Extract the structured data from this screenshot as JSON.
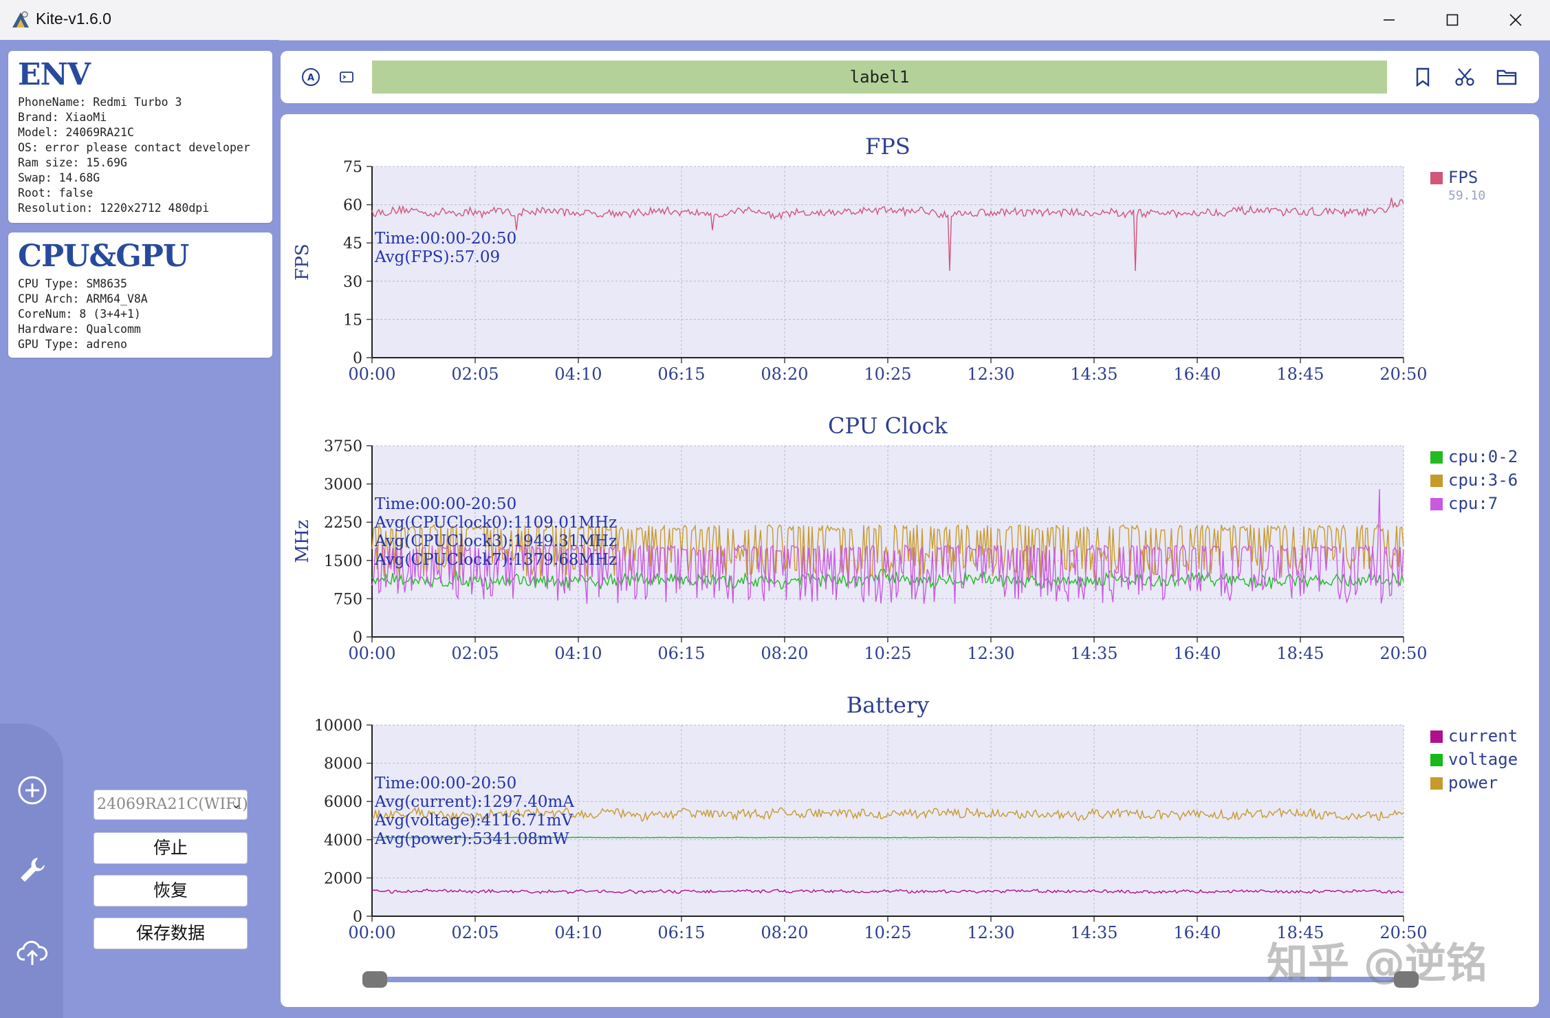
{
  "window": {
    "title": "Kite-v1.6.0"
  },
  "env_card": {
    "title": "ENV",
    "lines": [
      "PhoneName: Redmi Turbo 3",
      "Brand: XiaoMi",
      "Model: 24069RA21C",
      "OS: error please contact developer",
      "Ram size: 15.69G",
      "Swap: 14.68G",
      "Root: false",
      "Resolution: 1220x2712 480dpi"
    ]
  },
  "cpu_card": {
    "title": "CPU&GPU",
    "lines": [
      "CPU Type: SM8635",
      "CPU Arch: ARM64_V8A",
      "CoreNum: 8 (3+4+1)",
      "Hardware: Qualcomm",
      "GPU Type: adreno"
    ]
  },
  "controls": {
    "device_select": "24069RA21C(WIFI)",
    "stop_label": "停止",
    "resume_label": "恢复",
    "save_label": "保存数据"
  },
  "toolbar": {
    "label_text": "label1"
  },
  "icons": {
    "rail": [
      "add-icon",
      "wrench-icon",
      "upload-cloud-icon"
    ],
    "toolbar_left": [
      "auto-icon",
      "terminal-icon"
    ],
    "toolbar_right": [
      "bookmark-icon",
      "scissors-icon",
      "folder-icon"
    ]
  },
  "colors": {
    "accent": "#8b97d8",
    "fps": "#d0567a",
    "cpu0": "#22bb22",
    "cpu3": "#c79a2a",
    "cpu7": "#c95ae0",
    "current": "#b0108a",
    "voltage": "#18b818",
    "power": "#c79a2a"
  },
  "time_axis": [
    "00:00",
    "02:05",
    "04:10",
    "06:15",
    "08:20",
    "10:25",
    "12:30",
    "14:35",
    "16:40",
    "18:45",
    "20:50"
  ],
  "watermark": "知乎 @逆铭",
  "chart_data": [
    {
      "type": "line",
      "title": "FPS",
      "ylabel": "FPS",
      "ylim": [
        0,
        75
      ],
      "yticks": [
        "0",
        "15",
        "30",
        "45",
        "60",
        "75"
      ],
      "grid": true,
      "legend_position": "right",
      "series": [
        {
          "name": "FPS",
          "color": "#d0567a",
          "current": "59.10",
          "base": 57,
          "noise": 3,
          "dips": [
            [
              0.56,
              34
            ],
            [
              0.74,
              34
            ],
            [
              0.14,
              50
            ],
            [
              0.33,
              50
            ]
          ],
          "end_rise": 63
        }
      ],
      "annotations": [
        "Time:00:00-20:50",
        "Avg(FPS):57.09"
      ]
    },
    {
      "type": "line",
      "title": "CPU Clock",
      "ylabel": "MHz",
      "ylim": [
        0,
        3750
      ],
      "yticks": [
        "0",
        "750",
        "1500",
        "2250",
        "3000",
        "3750"
      ],
      "grid": true,
      "legend_position": "right",
      "series": [
        {
          "name": "cpu:0-2",
          "color": "#22bb22",
          "base": 1109,
          "noise": 250
        },
        {
          "name": "cpu:3-6",
          "color": "#c79a2a",
          "base": 1949,
          "noise": 350,
          "hi": 2200,
          "lo": 1150
        },
        {
          "name": "cpu:7",
          "color": "#c95ae0",
          "base": 1379,
          "noise": 420,
          "hi": 1800,
          "lo": 650,
          "spike": [
            0.977,
            2900
          ]
        }
      ],
      "annotations": [
        "Time:00:00-20:50",
        "Avg(CPUClock0):1109.01MHz",
        "Avg(CPUClock3):1949.31MHz",
        "Avg(CPUClock7):1379.68MHz"
      ]
    },
    {
      "type": "line",
      "title": "Battery",
      "ylabel": "",
      "ylim": [
        0,
        10000
      ],
      "yticks": [
        "0",
        "2000",
        "4000",
        "6000",
        "8000",
        "10000"
      ],
      "grid": true,
      "legend_position": "right",
      "series": [
        {
          "name": "current",
          "color": "#b0108a",
          "base": 1297,
          "noise": 150
        },
        {
          "name": "voltage",
          "color": "#18b818",
          "base": 4116,
          "noise": 20
        },
        {
          "name": "power",
          "color": "#c79a2a",
          "base": 5341,
          "noise": 450
        }
      ],
      "annotations": [
        "Time:00:00-20:50",
        "Avg(current):1297.40mA",
        "Avg(voltage):4116.71mV",
        "Avg(power):5341.08mW"
      ]
    }
  ]
}
